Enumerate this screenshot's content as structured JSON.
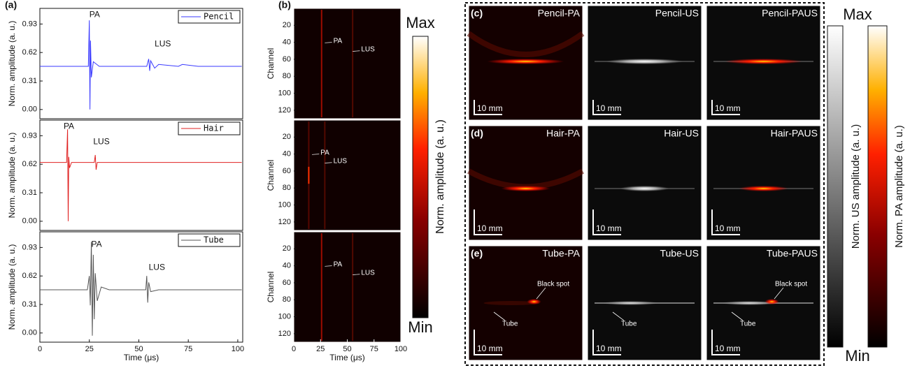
{
  "chart_data": [
    {
      "type": "line",
      "panel_label": "(a)",
      "y_label": "Norm. amplitude (a. u.)",
      "legend": "upper right",
      "x": [
        0,
        20,
        24.5,
        25,
        25.3,
        25.6,
        26,
        27,
        30,
        40,
        54,
        55,
        55.5,
        56,
        58,
        60,
        70,
        72,
        80,
        102
      ],
      "series": [
        {
          "name": "Pencil",
          "color": "#3a3aff",
          "values": [
            0.47,
            0.47,
            0.47,
            0.97,
            0.0,
            0.75,
            0.35,
            0.52,
            0.47,
            0.47,
            0.47,
            0.55,
            0.42,
            0.53,
            0.45,
            0.49,
            0.47,
            0.49,
            0.47,
            0.47
          ]
        }
      ],
      "annotations": [
        "PA",
        "LUS"
      ],
      "xlim": [
        0,
        102.5
      ],
      "ylim": [
        -0.1,
        1.1
      ],
      "yticks": [
        {
          "value": 0,
          "label": "0.00"
        },
        0.31,
        0.62,
        0.93
      ]
    },
    {
      "type": "line",
      "y_label": "Norm. amplitude (a. u.)",
      "legend": "upper right",
      "x": [
        0,
        13.5,
        14,
        14.3,
        14.6,
        15,
        16,
        20,
        27.5,
        28,
        28.4,
        29,
        40,
        102
      ],
      "series": [
        {
          "name": "Hair",
          "color": "#e02020",
          "values": [
            0.64,
            0.64,
            1.0,
            0.0,
            0.7,
            0.58,
            0.64,
            0.64,
            0.64,
            0.72,
            0.56,
            0.64,
            0.64,
            0.64
          ]
        }
      ],
      "annotations": [
        "PA",
        "LUS"
      ],
      "xlim": [
        0,
        102.5
      ],
      "ylim": [
        -0.1,
        1.1
      ],
      "yticks": [
        {
          "value": 0,
          "label": "0.00"
        },
        0.31,
        0.62,
        0.93
      ]
    },
    {
      "type": "line",
      "y_label": "Norm. amplitude (a. u.)",
      "x_label": "Time (μs)",
      "legend": "upper right",
      "x": [
        0,
        24,
        25,
        25.5,
        26,
        26.5,
        27,
        27.5,
        28,
        29,
        31,
        35,
        53.5,
        54,
        54.5,
        55,
        56,
        60,
        102
      ],
      "series": [
        {
          "name": "Tube",
          "color": "#555555",
          "values": [
            0.47,
            0.47,
            0.62,
            0.3,
            0.99,
            -0.03,
            0.85,
            0.15,
            0.65,
            0.35,
            0.5,
            0.47,
            0.47,
            0.62,
            0.33,
            0.55,
            0.45,
            0.47,
            0.47
          ]
        }
      ],
      "annotations": [
        "PA",
        "LUS"
      ],
      "xlim": [
        0,
        102.5
      ],
      "ylim": [
        -0.1,
        1.1
      ],
      "yticks": [
        {
          "value": 0,
          "label": "0.00"
        },
        0.31,
        0.62,
        0.93
      ],
      "xticks": [
        0,
        25,
        50,
        75,
        100
      ]
    },
    {
      "type": "heatmap",
      "panel_label": "(b)",
      "y_label": "Channel",
      "annotations": [
        "PA",
        "LUS"
      ],
      "xlim": [
        0,
        100
      ],
      "ylim": [
        130,
        0
      ],
      "yticks": [
        20,
        40,
        60,
        80,
        100,
        120
      ]
    },
    {
      "type": "heatmap",
      "y_label": "Channel",
      "annotations": [
        "PA",
        "LUS"
      ],
      "xlim": [
        0,
        100
      ],
      "ylim": [
        130,
        0
      ],
      "yticks": [
        20,
        40,
        60,
        80,
        100,
        120
      ]
    },
    {
      "type": "heatmap",
      "y_label": "Channel",
      "x_label": "Time (μs)",
      "annotations": [
        "PA",
        "LUS"
      ],
      "xlim": [
        0,
        100
      ],
      "ylim": [
        130,
        0
      ],
      "yticks": [
        20,
        40,
        60,
        80,
        100,
        120
      ],
      "xticks": [
        0,
        25,
        50,
        75,
        100
      ]
    }
  ],
  "colorbar_b": {
    "top": "Max",
    "bottom": "Min",
    "label": "Norm. amplitude (a. u.)"
  },
  "images": {
    "rows": [
      {
        "label": "(c)",
        "titles": [
          "Pencil-PA",
          "Pencil-US",
          "Pencil-PAUS"
        ]
      },
      {
        "label": "(d)",
        "titles": [
          "Hair-PA",
          "Hair-US",
          "Hair-PAUS"
        ]
      },
      {
        "label": "(e)",
        "titles": [
          "Tube-PA",
          "Tube-US",
          "Tube-PAUS"
        ]
      }
    ],
    "scale_bar": "10 mm",
    "spot_label": "Black spot",
    "tube_label": "Tube",
    "max": "Max",
    "min": "Min",
    "us_colorbar_label": "Norm. US amplitude (a. u.)",
    "pa_colorbar_label": "Norm. PA amplitude (a. u.)"
  }
}
